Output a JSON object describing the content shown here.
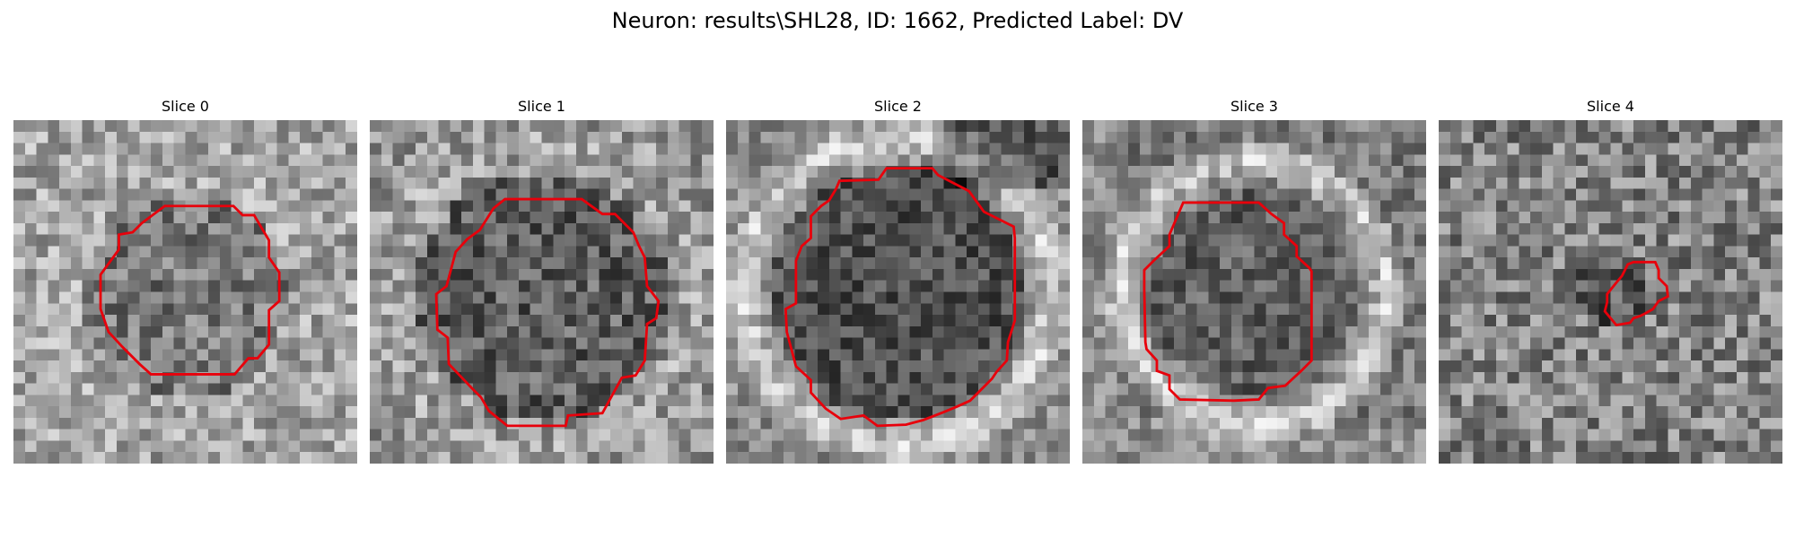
{
  "figure": {
    "title": "Neuron: results\\SHL28, ID: 1662, Predicted Label: DV"
  },
  "colors": {
    "contour": "#e8000b",
    "background": "#ffffff"
  },
  "panels": [
    {
      "title": "Slice 0"
    },
    {
      "title": "Slice 1"
    },
    {
      "title": "Slice 2"
    },
    {
      "title": "Slice 3"
    },
    {
      "title": "Slice 4"
    }
  ]
}
